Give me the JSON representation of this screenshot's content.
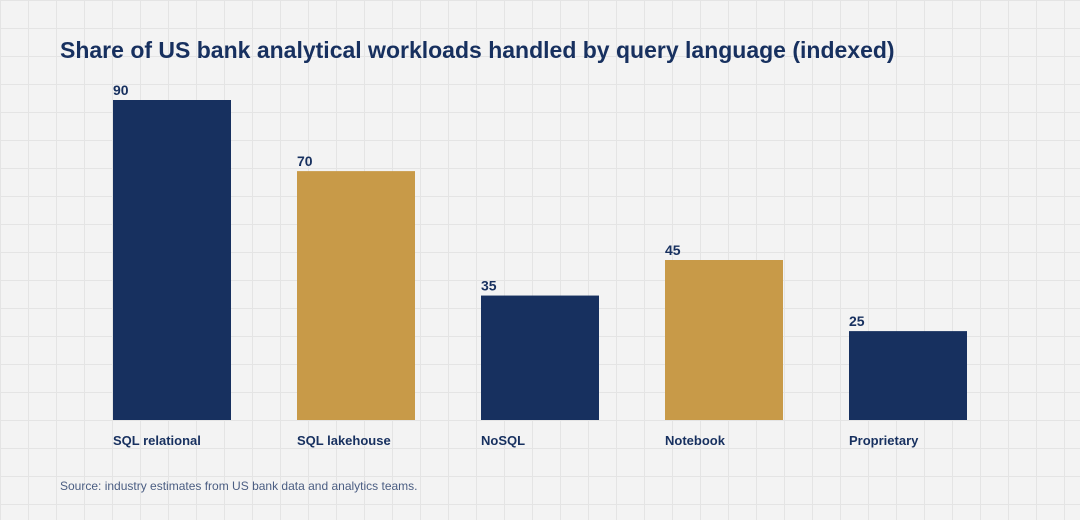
{
  "chart_data": {
    "type": "bar",
    "title": "Share of US bank analytical workloads handled by query language (indexed)",
    "categories": [
      "SQL relational",
      "SQL lakehouse",
      "NoSQL",
      "Notebook",
      "Proprietary"
    ],
    "values": [
      90,
      70,
      35,
      45,
      25
    ],
    "value_labels": [
      "90",
      "70",
      "35",
      "45",
      "25"
    ],
    "bar_colors": [
      "#17305f",
      "#c89a48",
      "#17305f",
      "#c89a48",
      "#17305f"
    ],
    "xlabel": "",
    "ylabel": "",
    "ylim": [
      0,
      90
    ],
    "grid": true,
    "legend": "none",
    "source": "Source: industry estimates from US bank data and analytics teams."
  },
  "colors": {
    "text": "#17305f",
    "source_text": "#4a5d82",
    "background": "#f3f3f3"
  }
}
